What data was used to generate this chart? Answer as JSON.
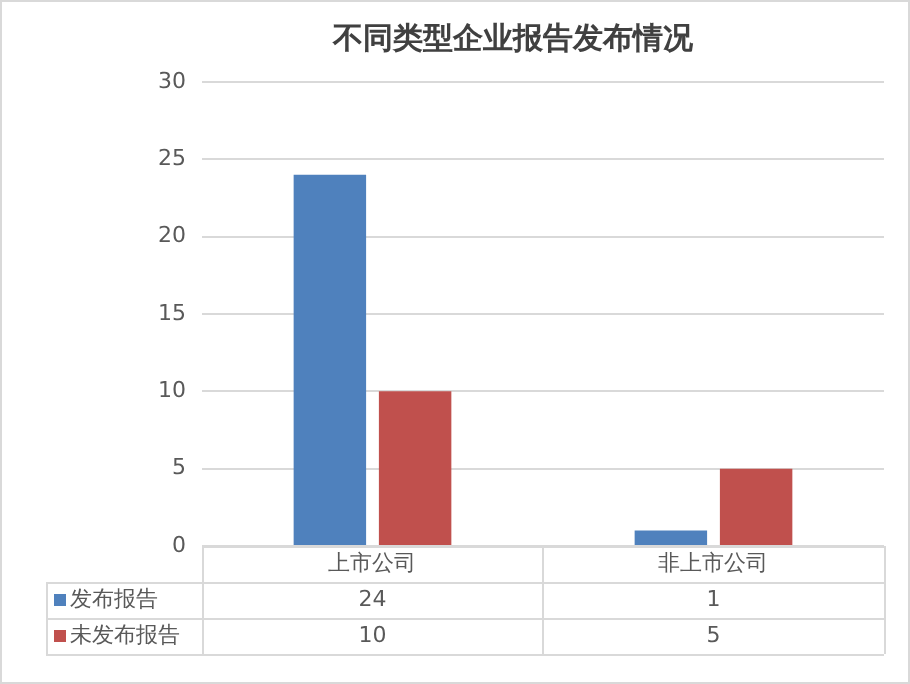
{
  "chart_data": {
    "type": "bar",
    "title": "不同类型企业报告发布情况",
    "categories": [
      "上市公司",
      "非上市公司"
    ],
    "series": [
      {
        "name": "发布报告",
        "color": "#4f81bd",
        "values": [
          24,
          1
        ]
      },
      {
        "name": "未发布报告",
        "color": "#c0504d",
        "values": [
          10,
          5
        ]
      }
    ],
    "ylim": [
      0,
      30
    ],
    "yticks": [
      0,
      5,
      10,
      15,
      20,
      25,
      30
    ],
    "grid": "y",
    "legend": "bottom",
    "data_labels": true
  }
}
